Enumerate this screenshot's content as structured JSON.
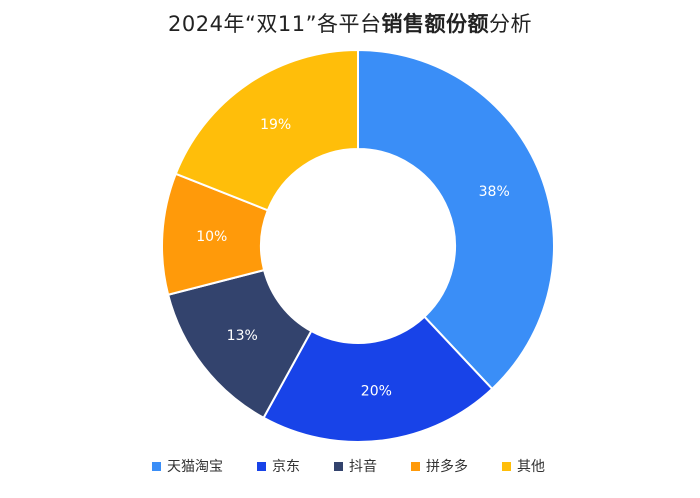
{
  "title": {
    "prefix": "2024年“双11”各平台",
    "bold": "销售额份额",
    "suffix": "分析"
  },
  "chart_data": {
    "type": "pie",
    "donut": true,
    "categories": [
      "天猫淘宝",
      "京东",
      "抖音",
      "拼多多",
      "其他"
    ],
    "values": [
      38,
      20,
      13,
      10,
      19
    ],
    "data_labels": [
      "38%",
      "20%",
      "13%",
      "10%",
      "19%"
    ],
    "colors": [
      "#3A8EF7",
      "#1843E8",
      "#33436D",
      "#FF9A0A",
      "#FFBE0A"
    ],
    "legend_position": "bottom"
  }
}
